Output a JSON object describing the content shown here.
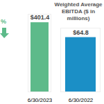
{
  "chart_data": [
    {
      "type": "bar",
      "categories": [
        "6/30/2023"
      ],
      "values": [
        401.4
      ],
      "value_labels": [
        "$401.4"
      ],
      "color": "#5dba8a",
      "ylim": [
        0,
        450
      ],
      "tick_labels": "x",
      "data_labels": true,
      "annotation": "%"
    },
    {
      "type": "bar",
      "title": "Weighted Average EBITDA ($ in millions)",
      "categories": [
        "6/30/2022"
      ],
      "values": [
        64.8
      ],
      "value_labels": [
        "$64.8"
      ],
      "color": "#1b8fc6",
      "ylim": [
        0,
        76
      ],
      "tick_labels": "x",
      "data_labels": true
    }
  ]
}
